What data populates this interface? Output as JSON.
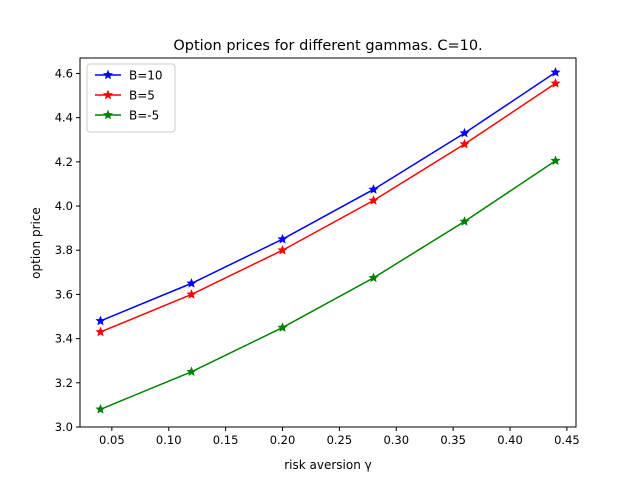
{
  "chart_data": {
    "type": "line",
    "title": "Option prices for different gammas. C=10.",
    "xlabel": "risk aversion γ",
    "ylabel": "option price",
    "x": [
      0.04,
      0.12,
      0.2,
      0.28,
      0.36,
      0.44
    ],
    "xlim": [
      0.022,
      0.458
    ],
    "ylim": [
      3.0,
      4.67
    ],
    "xticks": [
      "0.05",
      "0.10",
      "0.15",
      "0.20",
      "0.25",
      "0.30",
      "0.35",
      "0.40",
      "0.45"
    ],
    "yticks": [
      "3.0",
      "3.2",
      "3.4",
      "3.6",
      "3.8",
      "4.0",
      "4.2",
      "4.4",
      "4.6"
    ],
    "grid": false,
    "legend_position": "top-left",
    "marker": "star",
    "series": [
      {
        "name": "B=10",
        "color": "#0000ff",
        "values": [
          3.48,
          3.65,
          3.85,
          4.075,
          4.33,
          4.605
        ]
      },
      {
        "name": "B=5",
        "color": "#ff0000",
        "values": [
          3.43,
          3.6,
          3.8,
          4.025,
          4.28,
          4.555
        ]
      },
      {
        "name": "B=-5",
        "color": "#008000",
        "values": [
          3.08,
          3.25,
          3.45,
          3.675,
          3.93,
          4.205
        ]
      }
    ]
  }
}
